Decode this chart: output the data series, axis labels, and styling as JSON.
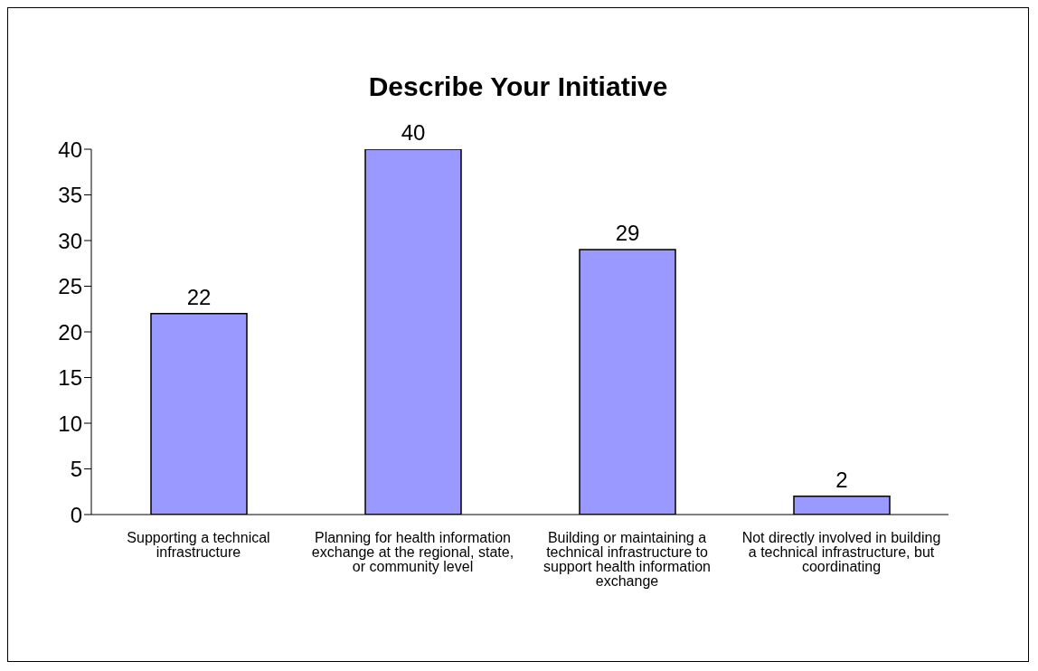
{
  "chart_data": {
    "type": "bar",
    "title": "Describe Your Initiative",
    "categories": [
      "Supporting a technical infrastructure",
      "Planning for health information exchange at the regional, state, or community level",
      "Building or maintaining a technical infrastructure to support health information exchange",
      "Not directly involved in building a technical infrastructure, but coordinating"
    ],
    "values": [
      22,
      40,
      29,
      2
    ],
    "color": "#9999ff",
    "ylim": [
      0,
      40
    ],
    "yticks": [
      0,
      5,
      10,
      15,
      20,
      25,
      30,
      35,
      40
    ],
    "grid": false,
    "legend": false,
    "data_labels": true
  }
}
